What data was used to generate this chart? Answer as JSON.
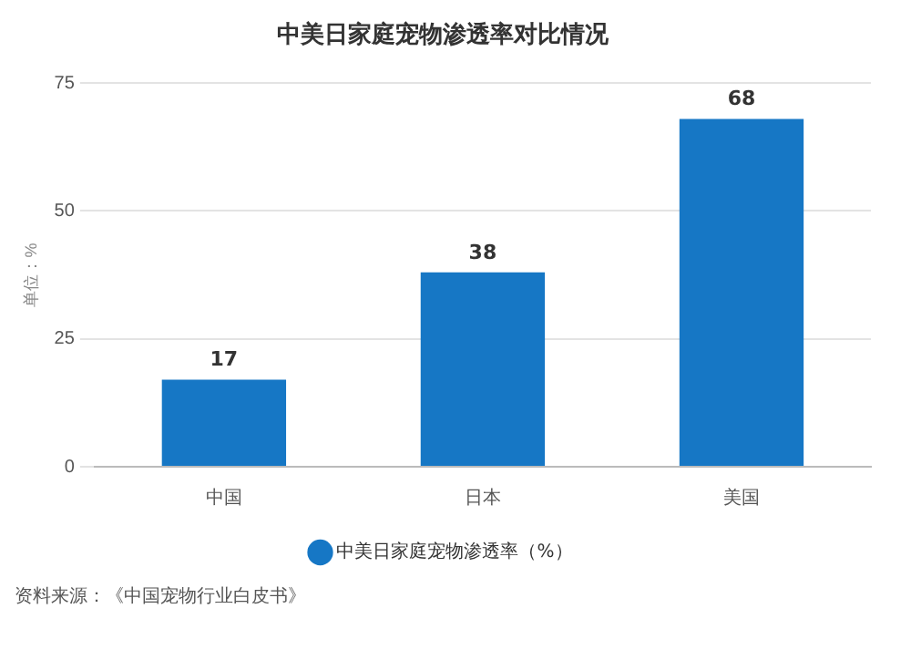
{
  "chart_data": {
    "type": "bar",
    "title": "中美日家庭宠物渗透率对比情况",
    "ylabel": "单位：%",
    "categories": [
      "中国",
      "日本",
      "美国"
    ],
    "series": [
      {
        "name": "中美日家庭宠物渗透率（%）",
        "color": "#1677c5",
        "values": [
          17,
          38,
          68
        ]
      }
    ],
    "ylim": [
      0,
      75
    ],
    "yticks": [
      0,
      25,
      50,
      75
    ],
    "grid": "y",
    "legend": "bottom",
    "data_labels": true,
    "annotations": [
      "资料来源：《中国宠物行业白皮书》"
    ]
  }
}
